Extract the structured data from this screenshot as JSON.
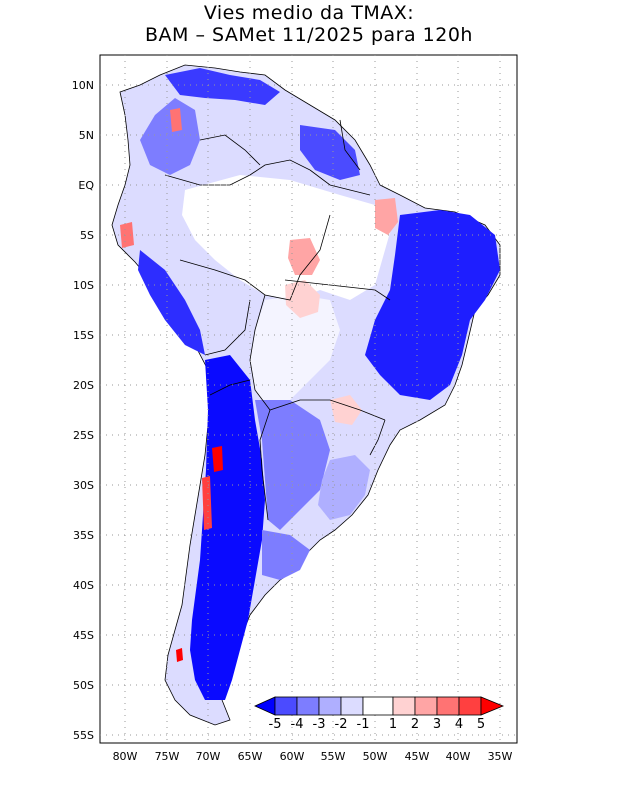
{
  "title": {
    "line1": "Vies medio da TMAX:",
    "line2": "BAM – SAMet 11/2025  para 120h"
  },
  "lat_labels": [
    "10N",
    "5N",
    "EQ",
    "5S",
    "10S",
    "15S",
    "20S",
    "25S",
    "30S",
    "35S",
    "40S",
    "45S",
    "50S",
    "55S"
  ],
  "lon_labels": [
    "80W",
    "75W",
    "70W",
    "65W",
    "60W",
    "55W",
    "50W",
    "45W",
    "40W",
    "35W"
  ],
  "colorbar": {
    "labels": [
      "-5",
      "-4",
      "-3",
      "-2",
      "-1",
      "1",
      "2",
      "3",
      "4",
      "5"
    ],
    "colors": [
      "#0000ff",
      "#4b4bff",
      "#7d7dff",
      "#afafff",
      "#dcdcff",
      "#ffffff",
      "#ffd2d2",
      "#ffa5a5",
      "#ff7373",
      "#ff4040",
      "#ff0000"
    ]
  },
  "colors": {
    "frame": "#000000",
    "grid": "#999999",
    "land_neutral": "#ffffff",
    "land_bias_light": "#e6e6ff"
  }
}
